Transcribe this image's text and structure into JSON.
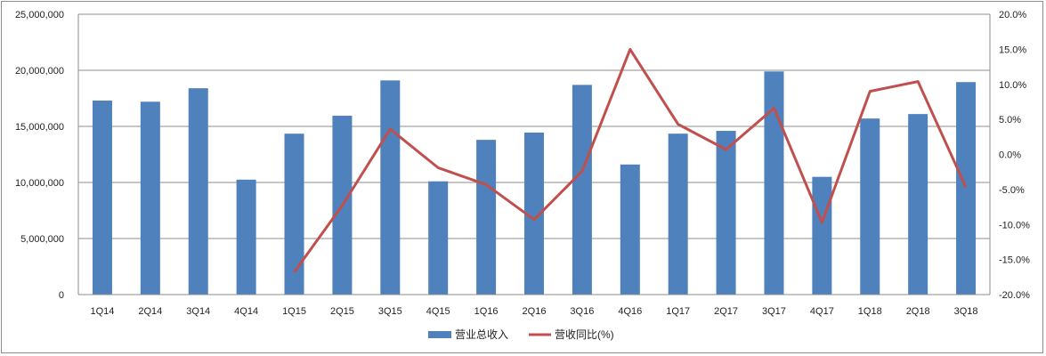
{
  "chart_data": {
    "type": "bar+line",
    "categories": [
      "1Q14",
      "2Q14",
      "3Q14",
      "4Q14",
      "1Q15",
      "2Q15",
      "3Q15",
      "4Q15",
      "1Q16",
      "2Q16",
      "3Q16",
      "4Q16",
      "1Q17",
      "2Q17",
      "3Q17",
      "4Q17",
      "1Q18",
      "2Q18",
      "3Q18"
    ],
    "series": [
      {
        "name": "营业总收入",
        "type": "bar",
        "axis": "left",
        "color": "#4f81bd",
        "values": [
          17300000,
          17200000,
          18400000,
          10250000,
          14350000,
          15950000,
          19100000,
          10100000,
          13800000,
          14450000,
          18700000,
          11600000,
          14350000,
          14600000,
          19900000,
          10500000,
          15700000,
          16100000,
          18950000
        ]
      },
      {
        "name": "营收同比(%)",
        "type": "line",
        "axis": "right",
        "color": "#c0504d",
        "values": [
          null,
          null,
          null,
          null,
          -16.8,
          -7.3,
          3.6,
          -1.9,
          -4.3,
          -9.3,
          -2.4,
          15.0,
          4.3,
          0.7,
          6.6,
          -9.7,
          9.0,
          10.4,
          -4.7
        ]
      }
    ],
    "y_left": {
      "min": 0,
      "max": 25000000,
      "ticks": [
        "0",
        "5,000,000",
        "10,000,000",
        "15,000,000",
        "20,000,000",
        "25,000,000"
      ]
    },
    "y_right": {
      "min": -20,
      "max": 20,
      "ticks": [
        "-20.0%",
        "-15.0%",
        "-10.0%",
        "-5.0%",
        "0.0%",
        "5.0%",
        "10.0%",
        "15.0%",
        "20.0%"
      ]
    },
    "grid": "horizontal",
    "legend_position": "bottom"
  }
}
